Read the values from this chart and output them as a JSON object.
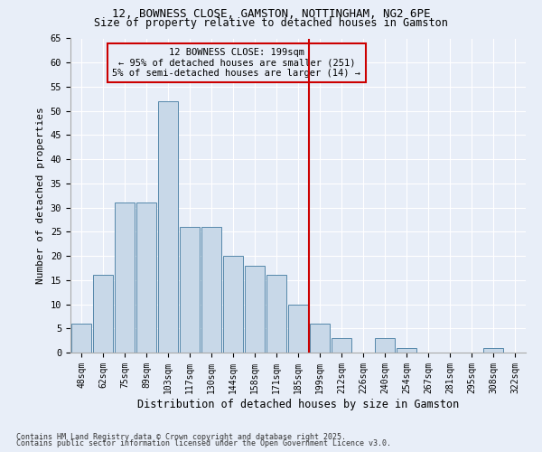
{
  "title1": "12, BOWNESS CLOSE, GAMSTON, NOTTINGHAM, NG2 6PE",
  "title2": "Size of property relative to detached houses in Gamston",
  "xlabel": "Distribution of detached houses by size in Gamston",
  "ylabel": "Number of detached properties",
  "bar_labels": [
    "48sqm",
    "62sqm",
    "75sqm",
    "89sqm",
    "103sqm",
    "117sqm",
    "130sqm",
    "144sqm",
    "158sqm",
    "171sqm",
    "185sqm",
    "199sqm",
    "212sqm",
    "226sqm",
    "240sqm",
    "254sqm",
    "267sqm",
    "281sqm",
    "295sqm",
    "308sqm",
    "322sqm"
  ],
  "bar_values": [
    6,
    16,
    31,
    31,
    52,
    26,
    26,
    20,
    18,
    16,
    10,
    6,
    3,
    0,
    3,
    1,
    0,
    0,
    0,
    1,
    0
  ],
  "bar_color": "#c8d8e8",
  "bar_edge_color": "#5588aa",
  "vline_color": "#cc0000",
  "annotation_text": "12 BOWNESS CLOSE: 199sqm\n← 95% of detached houses are smaller (251)\n5% of semi-detached houses are larger (14) →",
  "annotation_box_color": "#cc0000",
  "ylim": [
    0,
    65
  ],
  "yticks": [
    0,
    5,
    10,
    15,
    20,
    25,
    30,
    35,
    40,
    45,
    50,
    55,
    60,
    65
  ],
  "bg_color": "#e8eef8",
  "grid_color": "#ffffff",
  "footer1": "Contains HM Land Registry data © Crown copyright and database right 2025.",
  "footer2": "Contains public sector information licensed under the Open Government Licence v3.0."
}
